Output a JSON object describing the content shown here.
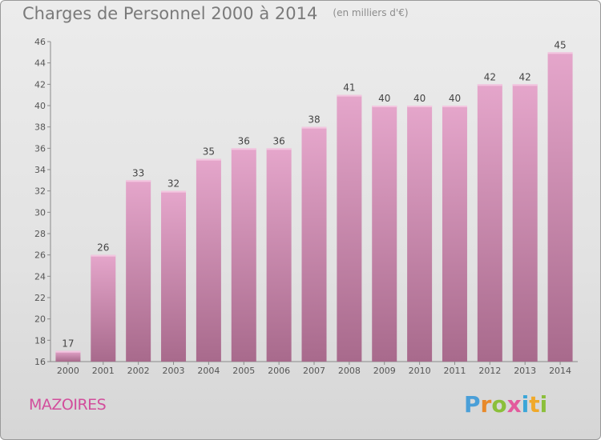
{
  "title": "Charges de Personnel 2000 à 2014",
  "unit_note": "(en milliers d'€)",
  "commune": "MAZOIRES",
  "brand": {
    "letters": [
      "P",
      "r",
      "o",
      "x",
      "i",
      "t",
      "i"
    ]
  },
  "colors": {
    "bar_top": "#e5a6cb",
    "bar_bottom": "#a86a8c",
    "axis": "#8a8a8a",
    "commune": "#d24e9c"
  },
  "chart_data": {
    "type": "bar",
    "categories": [
      "2000",
      "2001",
      "2002",
      "2003",
      "2004",
      "2005",
      "2006",
      "2007",
      "2008",
      "2009",
      "2010",
      "2011",
      "2012",
      "2013",
      "2014"
    ],
    "values": [
      17,
      26,
      33,
      32,
      35,
      36,
      36,
      38,
      41,
      40,
      40,
      40,
      42,
      42,
      45
    ],
    "title": "Charges de Personnel 2000 à 2014",
    "subtitle": "(en milliers d'€)",
    "ylim": [
      16,
      46
    ],
    "yticks": [
      16,
      18,
      20,
      22,
      24,
      26,
      28,
      30,
      32,
      34,
      36,
      38,
      40,
      42,
      44,
      46
    ],
    "grid": false,
    "data_labels": true
  }
}
